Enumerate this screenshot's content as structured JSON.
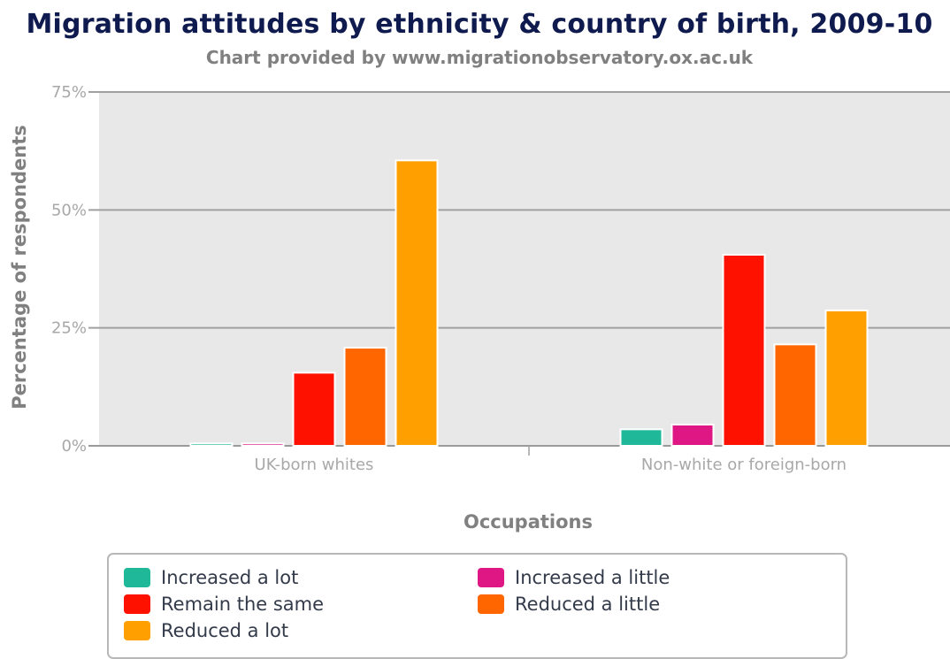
{
  "chart_data": {
    "type": "bar",
    "title": "Migration attitudes by ethnicity & country of birth, 2009-10",
    "subtitle": "Chart provided by www.migrationobservatory.ox.ac.uk",
    "xlabel": "Occupations",
    "ylabel": "Percentage of respondents",
    "categories": [
      "UK-born whites",
      "Non-white or foreign-born"
    ],
    "ylim": [
      0,
      75
    ],
    "yticks": [
      0,
      25,
      50,
      75
    ],
    "ytick_labels": [
      "0%",
      "25%",
      "50%",
      "75%"
    ],
    "grid": true,
    "legend_position": "bottom",
    "series": [
      {
        "name": "Increased a lot",
        "color": "#1fb99a",
        "values": [
          0.5,
          3.5
        ]
      },
      {
        "name": "Increased a little",
        "color": "#de1784",
        "values": [
          0.5,
          4.5
        ]
      },
      {
        "name": "Remain the same",
        "color": "#ff1100",
        "values": [
          15.5,
          40.5
        ]
      },
      {
        "name": "Reduced a little",
        "color": "#ff6600",
        "values": [
          20.8,
          21.5
        ]
      },
      {
        "name": "Reduced a lot",
        "color": "#ff9f00",
        "values": [
          60.5,
          28.7
        ]
      }
    ]
  }
}
